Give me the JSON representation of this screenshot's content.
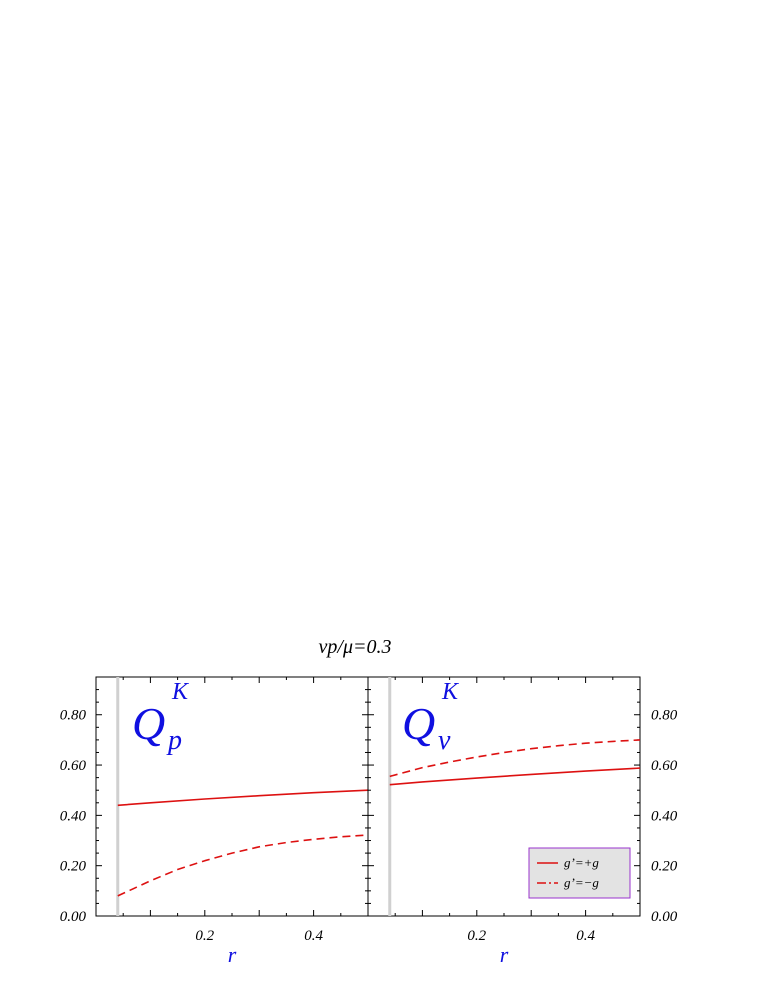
{
  "title": "vp/μ=0.3",
  "colors": {
    "curve": "#dd1111",
    "label": "#1010e0",
    "vline": "#d0d0d0",
    "legend_bg": "#e3e3e3",
    "legend_border": "#9933cc"
  },
  "chart_data": [
    {
      "type": "line",
      "panel": "left",
      "label_main": "Q",
      "label_sub": "p",
      "label_sup": "K",
      "xlabel": "r",
      "xlim": [
        0.0,
        0.5
      ],
      "ylim": [
        0.0,
        0.95
      ],
      "xticks": [
        0.2,
        0.4
      ],
      "xtick_labels": [
        "0.2",
        "0.4"
      ],
      "yticks": [
        0.0,
        0.2,
        0.4,
        0.6,
        0.8
      ],
      "ytick_labels": [
        "0.00",
        "0.20",
        "0.40",
        "0.60",
        "0.80"
      ],
      "y_axis_side": "left",
      "vline_x": 0.04,
      "series": [
        {
          "name": "g’=+g",
          "style": "solid",
          "x": [
            0.04,
            0.1,
            0.2,
            0.3,
            0.4,
            0.5
          ],
          "y": [
            0.44,
            0.45,
            0.465,
            0.478,
            0.49,
            0.5
          ]
        },
        {
          "name": "g’=−g",
          "style": "dashed",
          "x": [
            0.04,
            0.1,
            0.15,
            0.2,
            0.25,
            0.3,
            0.35,
            0.4,
            0.45,
            0.5
          ],
          "y": [
            0.08,
            0.14,
            0.185,
            0.22,
            0.25,
            0.275,
            0.292,
            0.305,
            0.315,
            0.322
          ]
        }
      ]
    },
    {
      "type": "line",
      "panel": "right",
      "label_main": "Q",
      "label_sub": "v",
      "label_sup": "K",
      "xlabel": "r",
      "xlim": [
        0.0,
        0.5
      ],
      "ylim": [
        0.0,
        0.95
      ],
      "xticks": [
        0.2,
        0.4
      ],
      "xtick_labels": [
        "0.2",
        "0.4"
      ],
      "yticks": [
        0.0,
        0.2,
        0.4,
        0.6,
        0.8
      ],
      "ytick_labels": [
        "0.00",
        "0.20",
        "0.40",
        "0.60",
        "0.80"
      ],
      "y_axis_side": "right",
      "vline_x": 0.04,
      "series": [
        {
          "name": "g’=+g",
          "style": "solid",
          "x": [
            0.04,
            0.1,
            0.2,
            0.3,
            0.4,
            0.5
          ],
          "y": [
            0.522,
            0.533,
            0.548,
            0.563,
            0.576,
            0.588
          ]
        },
        {
          "name": "g’=−g",
          "style": "dashed",
          "x": [
            0.04,
            0.1,
            0.15,
            0.2,
            0.25,
            0.3,
            0.35,
            0.4,
            0.45,
            0.5
          ],
          "y": [
            0.555,
            0.59,
            0.612,
            0.632,
            0.65,
            0.665,
            0.677,
            0.687,
            0.694,
            0.7
          ]
        }
      ],
      "legend": {
        "placement": "bottom-right",
        "entries": [
          {
            "label": "g’=+g",
            "style": "solid"
          },
          {
            "label": "g’=−g",
            "style": "dashdot"
          }
        ]
      }
    }
  ]
}
